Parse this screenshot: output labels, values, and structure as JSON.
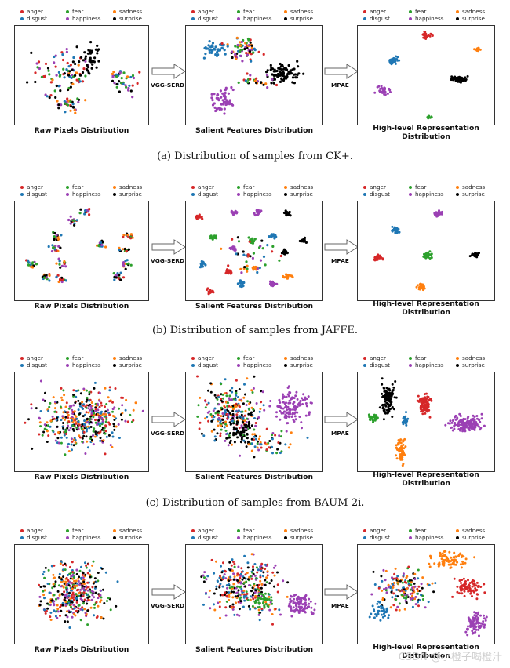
{
  "legend": {
    "labels": [
      "anger",
      "disgust",
      "fear",
      "happiness",
      "sadness",
      "surprise"
    ],
    "colors": {
      "anger": "#d62728",
      "disgust": "#1f77b4",
      "fear": "#2ca02c",
      "happiness": "#9b40b4",
      "sadness": "#ff7f0e",
      "surprise": "#000000"
    }
  },
  "panel_labels": {
    "raw": "Raw Pixels Distribution",
    "salient": "Salient Features Distribution",
    "high1": "High-level Representation",
    "high2": "Distribution"
  },
  "arrows": {
    "first": "VGG-SERD",
    "second": "MPAE"
  },
  "rows": [
    {
      "caption": "(a) Distribution of samples from CK+."
    },
    {
      "caption": "(b) Distribution of samples from JAFFE."
    },
    {
      "caption": "(c) Distribution of samples from BAUM-2i."
    },
    {
      "caption": ""
    }
  ],
  "watermark": "CSDN @小橙子喝橙汁"
}
